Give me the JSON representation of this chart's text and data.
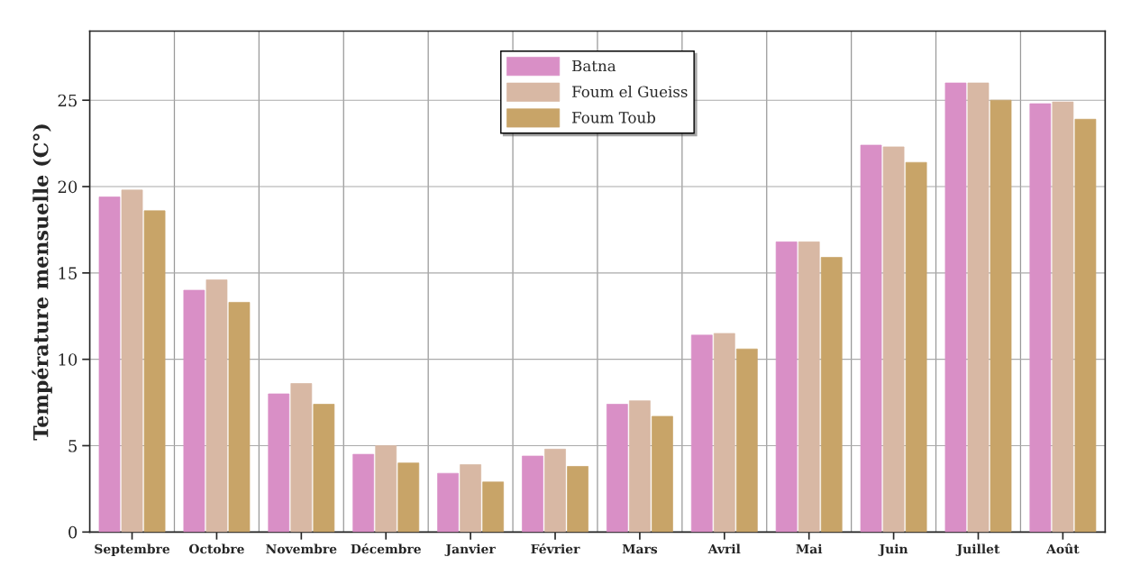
{
  "chart_data": {
    "type": "bar",
    "ylabel": "Température mensuelle (C°)",
    "categories": [
      "Septembre",
      "Octobre",
      "Novembre",
      "Décembre",
      "Janvier",
      "Février",
      "Mars",
      "Avril",
      "Mai",
      "Juin",
      "Juillet",
      "Août"
    ],
    "series": [
      {
        "name": "Batna",
        "color": "#d98fc6",
        "values": [
          19.4,
          14.0,
          8.0,
          4.5,
          3.4,
          4.4,
          7.4,
          11.4,
          16.8,
          22.4,
          26.0,
          24.8
        ]
      },
      {
        "name": "Foum el Gueiss",
        "color": "#d8b8a4",
        "values": [
          19.8,
          14.6,
          8.6,
          5.0,
          3.9,
          4.8,
          7.6,
          11.5,
          16.8,
          22.3,
          26.0,
          24.9
        ]
      },
      {
        "name": "Foum Toub",
        "color": "#c8a468",
        "values": [
          18.6,
          13.3,
          7.4,
          4.0,
          2.9,
          3.8,
          6.7,
          10.6,
          15.9,
          21.4,
          25.0,
          23.9
        ]
      }
    ],
    "ylim": [
      0,
      29
    ],
    "yticks": [
      0,
      5,
      10,
      15,
      20,
      25
    ],
    "grid": true,
    "legend": "top"
  }
}
